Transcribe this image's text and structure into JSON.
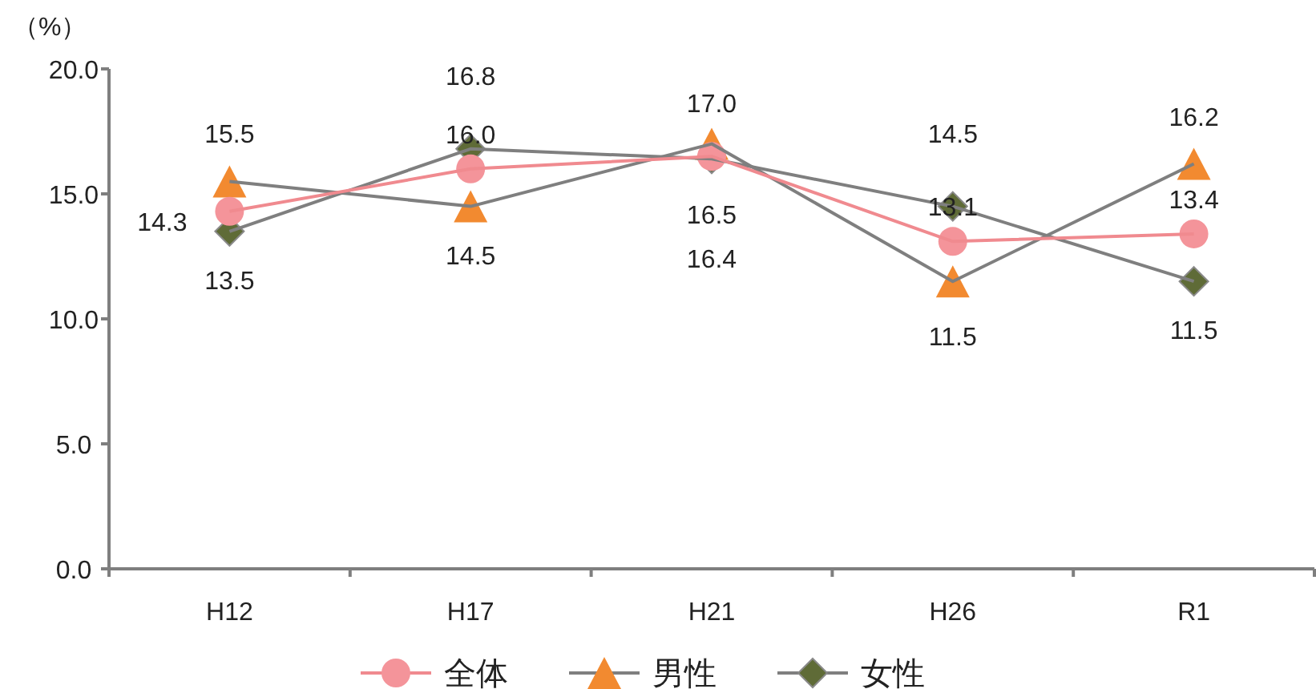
{
  "chart_data": {
    "type": "line",
    "ylabel": "（%）",
    "categories": [
      "H12",
      "H17",
      "H21",
      "H26",
      "R1"
    ],
    "ylim": [
      0,
      20
    ],
    "yticks": [
      {
        "value": 0,
        "label": "0.0"
      },
      {
        "value": 5,
        "label": "5.0"
      },
      {
        "value": 10,
        "label": "10.0"
      },
      {
        "value": 15,
        "label": "15.0"
      },
      {
        "value": 20,
        "label": "20.0"
      }
    ],
    "legend": "bottom",
    "grid": false,
    "series": [
      {
        "name": "全体",
        "color": "#f08a8f",
        "colors": [
          "#f4949a",
          "#f4949a",
          "#f4949a",
          "#f4949a",
          "#f4949a"
        ],
        "marker": "circle",
        "values": [
          14.3,
          16.0,
          16.5,
          13.1,
          13.4
        ],
        "value_labels": [
          "14.3",
          "16.0",
          "16.5",
          "13.1",
          "13.4"
        ]
      },
      {
        "name": "男性",
        "color": "#7f7f7f",
        "colors": [
          "#f28a30",
          "#f28a30",
          "#f28a30",
          "#f28a30",
          "#f28a30"
        ],
        "marker": "triangle",
        "values": [
          15.5,
          14.5,
          17.0,
          11.5,
          16.2
        ],
        "value_labels": [
          "15.5",
          "14.5",
          "17.0",
          "11.5",
          "16.2"
        ]
      },
      {
        "name": "女性",
        "color": "#7f7f7f",
        "colors": [
          "#5f6b37",
          "#5f6b37",
          "#5f6b37",
          "#5f6b37",
          "#5f6b37"
        ],
        "marker": "diamond",
        "values": [
          13.5,
          16.8,
          16.4,
          14.5,
          11.5
        ],
        "value_labels": [
          "13.5",
          "16.8",
          "16.4",
          "14.5",
          "11.5"
        ]
      }
    ]
  }
}
